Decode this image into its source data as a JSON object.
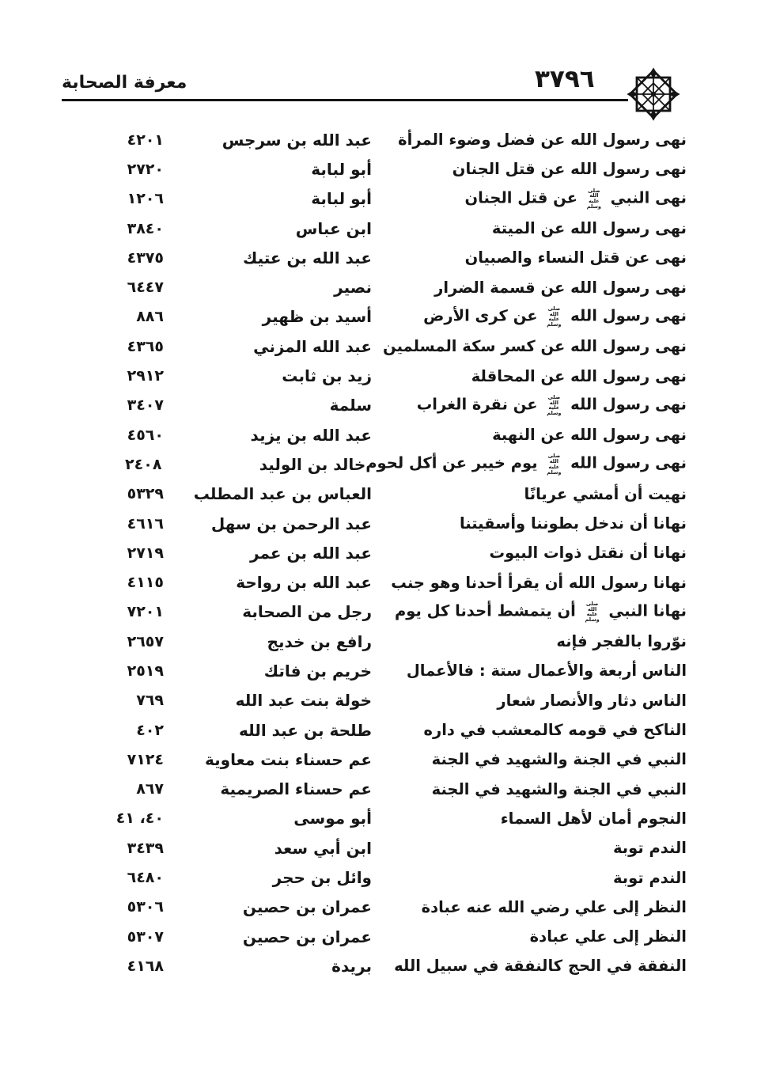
{
  "colors": {
    "ink": "#161616",
    "paper": "#ffffff"
  },
  "header": {
    "book_title": "معرفة الصحابة",
    "page_number": "٣٧٩٦",
    "ornament": "eight-pointed-star"
  },
  "index_rows": [
    {
      "text": "نهى رسول الله عن فضل وضوء المرأة",
      "narrator": "عبد الله بن سرجس",
      "number": "٤٢٠١"
    },
    {
      "text": "نهى رسول الله عن قتل الجنان",
      "narrator": "أبو لبابة",
      "number": "٢٧٢٠"
    },
    {
      "text": "نهى النبي ﷺ عن قتل الجنان",
      "narrator": "أبو لبابة",
      "number": "١٢٠٦"
    },
    {
      "text": "نهى رسول الله عن الميتة",
      "narrator": "ابن عباس",
      "number": "٣٨٤٠"
    },
    {
      "text": "نهى عن قتل النساء والصبيان",
      "narrator": "عبد الله بن عتيك",
      "number": "٤٣٧٥"
    },
    {
      "text": "نهى رسول الله عن قسمة الضرار",
      "narrator": "نصير",
      "number": "٦٤٤٧"
    },
    {
      "text": "نهى رسول الله ﷺ عن كرى الأرض",
      "narrator": "أسيد بن ظهير",
      "number": "٨٨٦"
    },
    {
      "text": "نهى رسول الله عن كسر سكة المسلمين",
      "narrator": "عبد الله المزني",
      "number": "٤٣٦٥"
    },
    {
      "text": "نهى رسول الله عن المحاقلة",
      "narrator": "زيد بن ثابت",
      "number": "٢٩١٢"
    },
    {
      "text": "نهى رسول الله ﷺ عن نقرة الغراب",
      "narrator": "سلمة",
      "number": "٣٤٠٧"
    },
    {
      "text": "نهى رسول الله عن النهبة",
      "narrator": "عبد الله بن يزيد",
      "number": "٤٥٦٠"
    },
    {
      "text": "نهى رسول الله ﷺ يوم خيبر عن أكل لحوم",
      "narrator": "خالد بن الوليد",
      "number": "٢٤٠٨"
    },
    {
      "text": "نهيت أن أمشي عريانًا",
      "narrator": "العباس بن عبد المطلب",
      "number": "٥٣٢٩"
    },
    {
      "text": "نهانا أن ندخل بطوننا وأسقيتنا",
      "narrator": "عبد الرحمن بن سهل",
      "number": "٤٦١٦"
    },
    {
      "text": "نهانا أن نقتل ذوات البيوت",
      "narrator": "عبد الله بن عمر",
      "number": "٢٧١٩"
    },
    {
      "text": "نهانا رسول الله أن يقرأ أحدنا وهو جنب",
      "narrator": "عبد الله بن رواحة",
      "number": "٤١١٥"
    },
    {
      "text": "نهانا النبي ﷺ أن يتمشط أحدنا كل يوم",
      "narrator": "رجل من الصحابة",
      "number": "٧٢٠١"
    },
    {
      "text": "نوّروا بالفجر فإنه",
      "narrator": "رافع بن خديج",
      "number": "٢٦٥٧"
    },
    {
      "text": "الناس أربعة والأعمال ستة : فالأعمال",
      "narrator": "خريم بن فاتك",
      "number": "٢٥١٩"
    },
    {
      "text": "الناس دثار والأنصار شعار",
      "narrator": "خولة بنت عبد الله",
      "number": "٧٦٩"
    },
    {
      "text": "الناكح في قومه كالمعشب في داره",
      "narrator": "طلحة بن عبد الله",
      "number": "٤٠٢"
    },
    {
      "text": "النبي في الجنة والشهيد في الجنة",
      "narrator": "عم حسناء بنت معاوية",
      "number": "٧١٢٤"
    },
    {
      "text": "النبي في الجنة والشهيد في الجنة",
      "narrator": "عم حسناء الصريمية",
      "number": "٨٦٧"
    },
    {
      "text": "النجوم أمان لأهل السماء",
      "narrator": "أبو موسى",
      "number": "٤٠، ٤١"
    },
    {
      "text": "الندم توبة",
      "narrator": "ابن أبي سعد",
      "number": "٣٤٣٩"
    },
    {
      "text": "الندم توبة",
      "narrator": "وائل بن حجر",
      "number": "٦٤٨٠"
    },
    {
      "text": "النظر إلى علي رضي الله عنه عبادة",
      "narrator": "عمران بن حصين",
      "number": "٥٣٠٦"
    },
    {
      "text": "النظر إلى علي عبادة",
      "narrator": "عمران بن حصين",
      "number": "٥٣٠٧"
    },
    {
      "text": "النفقة في الحج كالنفقة في سبيل الله",
      "narrator": "بريدة",
      "number": "٤١٦٨"
    }
  ]
}
